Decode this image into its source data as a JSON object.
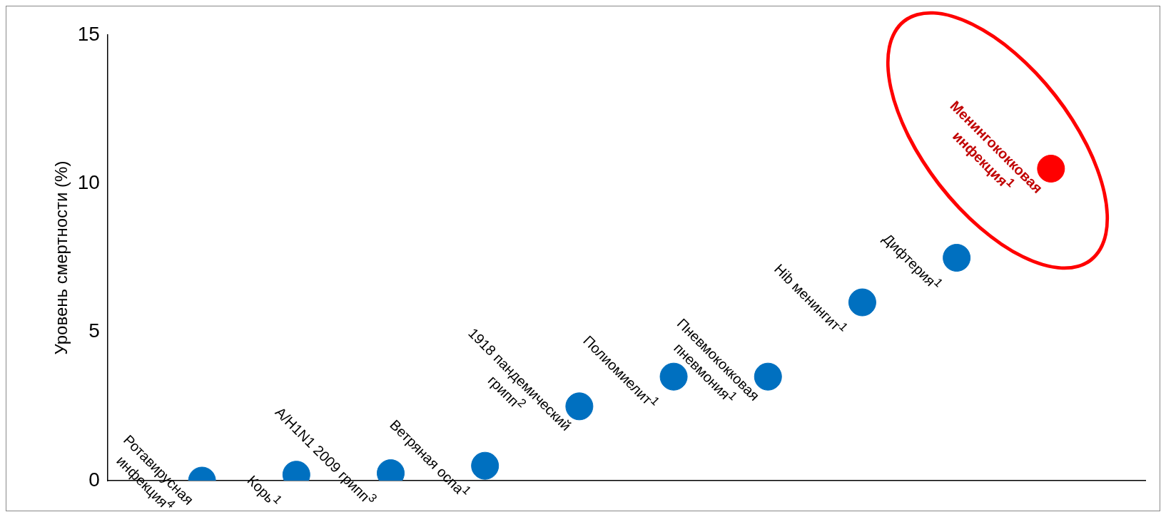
{
  "chart_data": {
    "type": "scatter",
    "ylabel": "Уровень смертности (%)",
    "categories": [
      null,
      null,
      null,
      null,
      null,
      null,
      null,
      null,
      null,
      null,
      null,
      null
    ],
    "values": [
      null,
      0,
      0.2,
      0.25,
      0.5,
      2.5,
      3.5,
      3.5,
      6,
      7.5,
      10.5,
      null
    ],
    "colors": [
      "#0070c0",
      "#0070c0",
      "#0070c0",
      "#0070c0",
      "#0070c0",
      "#0070c0",
      "#0070c0",
      "#0070c0",
      "#0070c0",
      "#0070c0",
      "#ff0000",
      "#0070c0"
    ],
    "ylim": [
      0,
      15
    ],
    "yticks": [
      0,
      5,
      10,
      15
    ],
    "tick_labels": "y",
    "grid": false,
    "legend": false,
    "marker": "circle",
    "annotations": [
      "Ротавирусная\nинфекция$^{4}$",
      "Корь$^{1}$",
      "A/H1N1 2009 грипп$^{3}$",
      "Ветряная оспа$^{1}$",
      "1918 пандемический\nгрипп$^{2}$",
      "Полиомиелит$^{1}$",
      "Пневмококковая\nпневмония$^{1}$",
      "Hib менингит$^{1}$",
      "Дифтерия$^{1}$",
      "Менингококковая\nинфекция$^{1}$"
    ]
  }
}
